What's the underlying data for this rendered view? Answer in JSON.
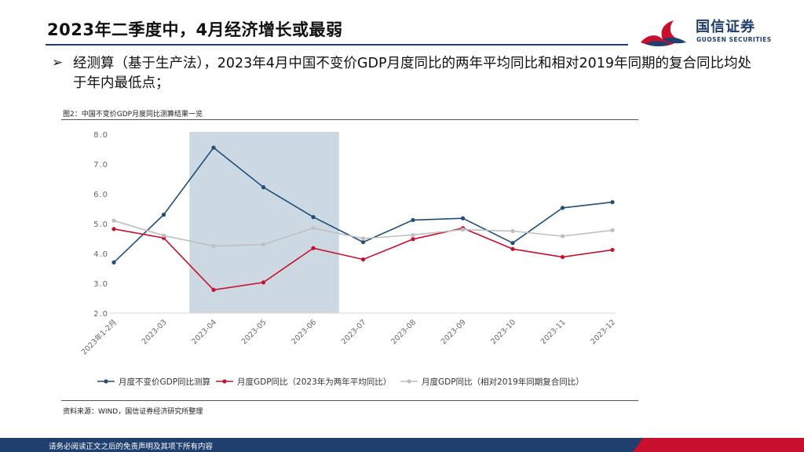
{
  "header": {
    "title": "2023年二季度中，4月经济增长或最弱",
    "logo_name": "国信证券",
    "logo_sub": "GUOSEN SECURITIES"
  },
  "bullet": {
    "marker": "➢",
    "text": "经测算（基于生产法），2023年4月中国不变价GDP月度同比的两年平均同比和相对2019年同期的复合同比均处于年内最低点；"
  },
  "figure": {
    "caption": "图2：中国不变价GDP月度同比测算结果一览",
    "source": "资料来源：WIND，国信证券经济研究所整理"
  },
  "footer": {
    "disclaimer": "请务必阅读正文之后的免责声明及其项下所有内容"
  },
  "colors": {
    "brand_blue": "#1f3f6e",
    "brand_red": "#c8102e",
    "series1": "#1f4e79",
    "series2": "#c8102e",
    "series3": "#bfbfbf",
    "shade": "#ccd9e2"
  },
  "chart_data": {
    "type": "line",
    "title": "",
    "xlabel": "",
    "ylabel": "",
    "ylim": [
      2.0,
      8.0
    ],
    "yticks": [
      "2.0",
      "3.0",
      "4.0",
      "5.0",
      "6.0",
      "7.0",
      "8.0"
    ],
    "categories": [
      "2023年1-2月",
      "2023-03",
      "2023-04",
      "2023-05",
      "2023-06",
      "2023-07",
      "2023-08",
      "2023-09",
      "2023-10",
      "2023-11",
      "2023-12"
    ],
    "highlight": {
      "from": "2023-04",
      "to": "2023-06"
    },
    "legend_position": "bottom",
    "series": [
      {
        "name": "月度不变价GDP同比测算",
        "values": [
          3.7,
          5.3,
          7.55,
          6.22,
          5.22,
          4.38,
          5.12,
          5.18,
          4.35,
          5.53,
          5.72
        ]
      },
      {
        "name": "月度GDP同比（2023年为两年平均同比）",
        "values": [
          4.82,
          4.52,
          2.78,
          3.03,
          4.18,
          3.8,
          4.48,
          4.85,
          4.15,
          3.88,
          4.12
        ]
      },
      {
        "name": "月度GDP同比（相对2019年同期复合同比）",
        "values": [
          5.1,
          4.6,
          4.25,
          4.3,
          4.85,
          4.5,
          4.62,
          4.8,
          4.75,
          4.58,
          4.78
        ]
      }
    ]
  }
}
